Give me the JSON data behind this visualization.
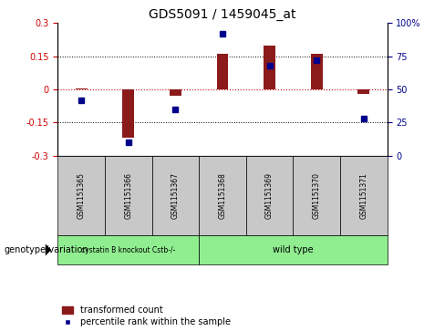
{
  "title": "GDS5091 / 1459045_at",
  "categories": [
    "GSM1151365",
    "GSM1151366",
    "GSM1151367",
    "GSM1151368",
    "GSM1151369",
    "GSM1151370",
    "GSM1151371"
  ],
  "bar_values": [
    0.005,
    -0.22,
    -0.03,
    0.16,
    0.2,
    0.16,
    -0.02
  ],
  "dot_values": [
    42,
    10,
    35,
    92,
    68,
    72,
    28
  ],
  "ylim": [
    -0.3,
    0.3
  ],
  "y2lim": [
    0,
    100
  ],
  "yticks": [
    -0.3,
    -0.15,
    0,
    0.15,
    0.3
  ],
  "y2ticks": [
    0,
    25,
    50,
    75,
    100
  ],
  "bar_color": "#8B1A1A",
  "dot_color": "#00008B",
  "hline_color": "#CC0000",
  "dotted_color": "#000000",
  "bg_color": "#ffffff",
  "plot_bg": "#ffffff",
  "group1_label": "cystatin B knockout Cstb-/-",
  "group2_label": "wild type",
  "group1_color": "#90EE90",
  "group2_color": "#90EE90",
  "group1_count": 3,
  "group2_count": 4,
  "legend_bar_label": "transformed count",
  "legend_dot_label": "percentile rank within the sample",
  "genotype_label": "genotype/variation",
  "title_fontsize": 10,
  "tick_fontsize": 7,
  "label_fontsize": 7,
  "bar_width": 0.25
}
